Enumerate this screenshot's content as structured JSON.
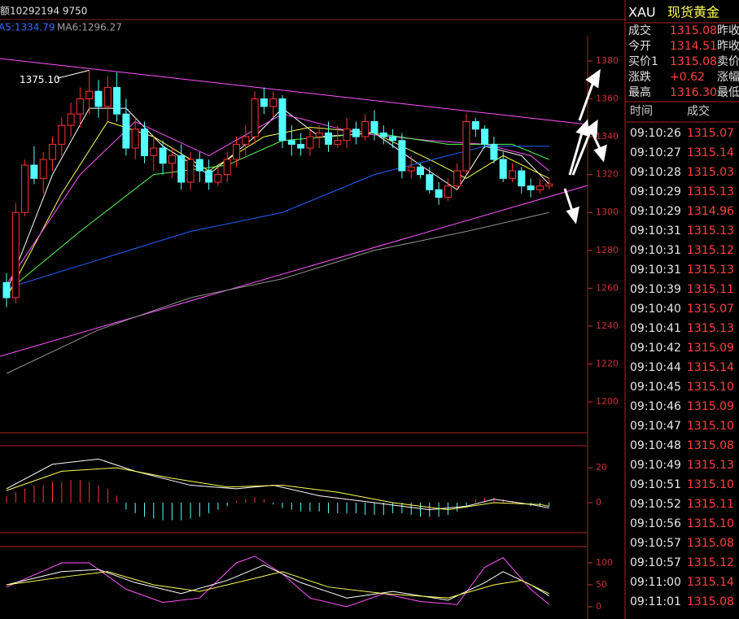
{
  "header": {
    "volume_text": "额10292194 9750",
    "ma5": "A5:1334.79",
    "ma6": "MA6:1296.27"
  },
  "chart_data": {
    "type": "candlestick",
    "up_color": "#ff3232",
    "down_color": "#54ffff",
    "candles": [
      [
        1263,
        1268,
        1250,
        1255
      ],
      [
        1255,
        1305,
        1252,
        1300
      ],
      [
        1300,
        1328,
        1298,
        1325
      ],
      [
        1325,
        1335,
        1315,
        1318
      ],
      [
        1318,
        1332,
        1310,
        1328
      ],
      [
        1328,
        1340,
        1322,
        1336
      ],
      [
        1336,
        1350,
        1330,
        1346
      ],
      [
        1346,
        1358,
        1340,
        1352
      ],
      [
        1352,
        1366,
        1345,
        1360
      ],
      [
        1360,
        1375.1,
        1352,
        1364
      ],
      [
        1364,
        1370,
        1350,
        1356
      ],
      [
        1356,
        1372,
        1348,
        1366
      ],
      [
        1366,
        1374,
        1348,
        1352
      ],
      [
        1352,
        1360,
        1330,
        1334
      ],
      [
        1334,
        1350,
        1328,
        1344
      ],
      [
        1344,
        1348,
        1326,
        1330
      ],
      [
        1330,
        1340,
        1322,
        1334
      ],
      [
        1334,
        1338,
        1320,
        1326
      ],
      [
        1326,
        1334,
        1318,
        1330
      ],
      [
        1330,
        1336,
        1312,
        1316
      ],
      [
        1316,
        1332,
        1312,
        1328
      ],
      [
        1328,
        1332,
        1316,
        1322
      ],
      [
        1322,
        1328,
        1312,
        1316
      ],
      [
        1316,
        1324,
        1314,
        1320
      ],
      [
        1320,
        1332,
        1316,
        1328
      ],
      [
        1328,
        1340,
        1324,
        1336
      ],
      [
        1336,
        1346,
        1330,
        1340
      ],
      [
        1340,
        1364,
        1336,
        1360
      ],
      [
        1360,
        1366,
        1352,
        1356
      ],
      [
        1356,
        1364,
        1350,
        1360
      ],
      [
        1360,
        1362,
        1334,
        1338
      ],
      [
        1338,
        1346,
        1330,
        1336
      ],
      [
        1336,
        1342,
        1330,
        1334
      ],
      [
        1334,
        1344,
        1330,
        1340
      ],
      [
        1340,
        1346,
        1334,
        1342
      ],
      [
        1342,
        1348,
        1332,
        1336
      ],
      [
        1336,
        1346,
        1334,
        1338
      ],
      [
        1338,
        1350,
        1334,
        1344
      ],
      [
        1344,
        1348,
        1336,
        1340
      ],
      [
        1340,
        1352,
        1338,
        1348
      ],
      [
        1348,
        1354,
        1338,
        1342
      ],
      [
        1342,
        1346,
        1336,
        1340
      ],
      [
        1340,
        1344,
        1334,
        1338
      ],
      [
        1338,
        1342,
        1318,
        1322
      ],
      [
        1322,
        1330,
        1318,
        1324
      ],
      [
        1324,
        1326,
        1318,
        1320
      ],
      [
        1320,
        1324,
        1310,
        1312
      ],
      [
        1312,
        1316,
        1304,
        1308
      ],
      [
        1308,
        1318,
        1306,
        1314
      ],
      [
        1314,
        1326,
        1312,
        1322
      ],
      [
        1322,
        1352,
        1320,
        1348
      ],
      [
        1348,
        1350,
        1340,
        1344
      ],
      [
        1344,
        1346,
        1334,
        1336
      ],
      [
        1336,
        1340,
        1326,
        1328
      ],
      [
        1328,
        1332,
        1316,
        1318
      ],
      [
        1318,
        1326,
        1316,
        1322
      ],
      [
        1322,
        1324,
        1310,
        1314
      ],
      [
        1314,
        1318,
        1308,
        1312
      ],
      [
        1312,
        1318,
        1310,
        1314
      ],
      [
        1314,
        1318,
        1312,
        1315.08
      ]
    ],
    "ylim": [
      1183.7,
      1393.3
    ],
    "yticks": [
      1380,
      1360,
      1340,
      1320,
      1300,
      1280,
      1260,
      1240,
      1220,
      1200
    ],
    "annotation": "1375.10",
    "ma_lines": [
      {
        "color": "#ffffff",
        "points": [
          [
            0,
            1258
          ],
          [
            5,
            1320
          ],
          [
            9,
            1355
          ],
          [
            13,
            1355
          ],
          [
            17,
            1335
          ],
          [
            22,
            1320
          ],
          [
            27,
            1340
          ],
          [
            30,
            1355
          ],
          [
            34,
            1340
          ],
          [
            40,
            1342
          ],
          [
            45,
            1325
          ],
          [
            49,
            1312
          ],
          [
            52,
            1335
          ],
          [
            56,
            1330
          ],
          [
            59,
            1315
          ]
        ]
      },
      {
        "color": "#ffff54",
        "points": [
          [
            0,
            1255
          ],
          [
            6,
            1310
          ],
          [
            11,
            1348
          ],
          [
            16,
            1340
          ],
          [
            22,
            1322
          ],
          [
            28,
            1340
          ],
          [
            33,
            1345
          ],
          [
            40,
            1342
          ],
          [
            46,
            1328
          ],
          [
            50,
            1318
          ],
          [
            54,
            1330
          ],
          [
            59,
            1318
          ]
        ]
      },
      {
        "color": "#ff54ff",
        "points": [
          [
            0,
            1262
          ],
          [
            8,
            1320
          ],
          [
            14,
            1348
          ],
          [
            22,
            1330
          ],
          [
            30,
            1352
          ],
          [
            38,
            1342
          ],
          [
            46,
            1338
          ],
          [
            52,
            1336
          ],
          [
            57,
            1330
          ],
          [
            59,
            1322
          ]
        ]
      },
      {
        "color": "#54ff54",
        "points": [
          [
            0,
            1258
          ],
          [
            8,
            1290
          ],
          [
            16,
            1320
          ],
          [
            24,
            1325
          ],
          [
            30,
            1338
          ],
          [
            40,
            1342
          ],
          [
            48,
            1336
          ],
          [
            55,
            1336
          ],
          [
            59,
            1328
          ]
        ]
      },
      {
        "color": "#2060ff",
        "points": [
          [
            0,
            1260
          ],
          [
            10,
            1275
          ],
          [
            20,
            1290
          ],
          [
            30,
            1300
          ],
          [
            40,
            1320
          ],
          [
            48,
            1330
          ],
          [
            52,
            1335
          ],
          [
            59,
            1335
          ]
        ]
      },
      {
        "color": "#909090",
        "points": [
          [
            0,
            1215
          ],
          [
            10,
            1238
          ],
          [
            20,
            1255
          ],
          [
            30,
            1265
          ],
          [
            40,
            1280
          ],
          [
            50,
            1290
          ],
          [
            59,
            1300
          ]
        ]
      }
    ],
    "macd": {
      "ylim": [
        -17.2,
        32.6
      ],
      "yticks": [
        20,
        0
      ],
      "bars": [
        4,
        6,
        8,
        10,
        10,
        12,
        12,
        13,
        13,
        12,
        10,
        8,
        4,
        -4,
        -6,
        -8,
        -9,
        -10,
        -10,
        -10,
        -9,
        -8,
        -6,
        -4,
        -2,
        1,
        2,
        3,
        2,
        -1,
        -3,
        -4,
        -5,
        -5,
        -5,
        -6,
        -6,
        -6,
        -6,
        -7,
        -7,
        -7,
        -6,
        -6,
        -7,
        -8,
        -8,
        -8,
        -7,
        -5,
        -2,
        2,
        3,
        3,
        2,
        1,
        -1,
        -2,
        -2,
        -2
      ],
      "lines": [
        {
          "color": "#ffffff",
          "points": [
            [
              0,
              8
            ],
            [
              5,
              22
            ],
            [
              10,
              25
            ],
            [
              14,
              18
            ],
            [
              20,
              10
            ],
            [
              25,
              8
            ],
            [
              29,
              10
            ],
            [
              34,
              4
            ],
            [
              40,
              0
            ],
            [
              46,
              -4
            ],
            [
              50,
              -2
            ],
            [
              53,
              2
            ],
            [
              57,
              -1
            ],
            [
              59,
              -3
            ]
          ]
        },
        {
          "color": "#ffff54",
          "points": [
            [
              0,
              7
            ],
            [
              6,
              18
            ],
            [
              12,
              20
            ],
            [
              18,
              14
            ],
            [
              24,
              9
            ],
            [
              30,
              10
            ],
            [
              36,
              6
            ],
            [
              42,
              0
            ],
            [
              48,
              -4
            ],
            [
              53,
              0
            ],
            [
              58,
              -1
            ],
            [
              59,
              -2
            ]
          ]
        }
      ]
    },
    "kdj": {
      "ylim": [
        -27.8,
        137
      ],
      "yticks": [
        100,
        50,
        0
      ],
      "lines": [
        {
          "color": "#ff54ff",
          "points": [
            [
              0,
              45
            ],
            [
              6,
              100
            ],
            [
              9,
              100
            ],
            [
              13,
              40
            ],
            [
              17,
              10
            ],
            [
              21,
              20
            ],
            [
              25,
              100
            ],
            [
              27,
              115
            ],
            [
              30,
              75
            ],
            [
              33,
              20
            ],
            [
              37,
              0
            ],
            [
              41,
              30
            ],
            [
              45,
              12
            ],
            [
              49,
              5
            ],
            [
              52,
              90
            ],
            [
              54,
              112
            ],
            [
              57,
              40
            ],
            [
              59,
              5
            ]
          ]
        },
        {
          "color": "#ffffff",
          "points": [
            [
              0,
              50
            ],
            [
              6,
              80
            ],
            [
              10,
              85
            ],
            [
              14,
              55
            ],
            [
              19,
              30
            ],
            [
              24,
              60
            ],
            [
              28,
              95
            ],
            [
              32,
              55
            ],
            [
              37,
              20
            ],
            [
              42,
              35
            ],
            [
              48,
              15
            ],
            [
              52,
              55
            ],
            [
              54,
              80
            ],
            [
              57,
              50
            ],
            [
              59,
              25
            ]
          ]
        },
        {
          "color": "#ffff54",
          "points": [
            [
              0,
              50
            ],
            [
              7,
              70
            ],
            [
              11,
              80
            ],
            [
              16,
              50
            ],
            [
              21,
              35
            ],
            [
              26,
              60
            ],
            [
              30,
              80
            ],
            [
              35,
              45
            ],
            [
              41,
              30
            ],
            [
              48,
              20
            ],
            [
              53,
              50
            ],
            [
              56,
              60
            ],
            [
              59,
              30
            ]
          ]
        }
      ]
    }
  },
  "quote": {
    "symbol": "XAU",
    "name": "现货黄金",
    "rows": [
      {
        "label": "成交",
        "value": "1315.08",
        "extra": "昨收"
      },
      {
        "label": "今开",
        "value": "1314.51",
        "extra": "昨收"
      },
      {
        "label": "买价1",
        "value": "1315.08",
        "extra": "卖价"
      },
      {
        "label": "涨跌",
        "value": "+0.62",
        "extra": "涨幅"
      },
      {
        "label": "最高",
        "value": "1316.30",
        "extra": "最低"
      }
    ],
    "ticks_header": [
      "时间",
      "成交"
    ],
    "ticks": [
      [
        "09:10:26",
        "1315.07"
      ],
      [
        "09:10:27",
        "1315.14"
      ],
      [
        "09:10:28",
        "1315.03"
      ],
      [
        "09:10:29",
        "1315.13"
      ],
      [
        "09:10:29",
        "1314.96"
      ],
      [
        "09:10:31",
        "1315.13"
      ],
      [
        "09:10:31",
        "1315.12"
      ],
      [
        "09:10:31",
        "1315.13"
      ],
      [
        "09:10:39",
        "1315.11"
      ],
      [
        "09:10:40",
        "1315.07"
      ],
      [
        "09:10:41",
        "1315.13"
      ],
      [
        "09:10:42",
        "1315.09"
      ],
      [
        "09:10:44",
        "1315.14"
      ],
      [
        "09:10:45",
        "1315.10"
      ],
      [
        "09:10:46",
        "1315.09"
      ],
      [
        "09:10:47",
        "1315.10"
      ],
      [
        "09:10:48",
        "1315.08"
      ],
      [
        "09:10:49",
        "1315.13"
      ],
      [
        "09:10:51",
        "1315.10"
      ],
      [
        "09:10:52",
        "1315.11"
      ],
      [
        "09:10:56",
        "1315.10"
      ],
      [
        "09:10:57",
        "1315.08"
      ],
      [
        "09:10:57",
        "1315.12"
      ],
      [
        "09:11:00",
        "1315.14"
      ],
      [
        "09:11:01",
        "1315.08"
      ]
    ]
  }
}
